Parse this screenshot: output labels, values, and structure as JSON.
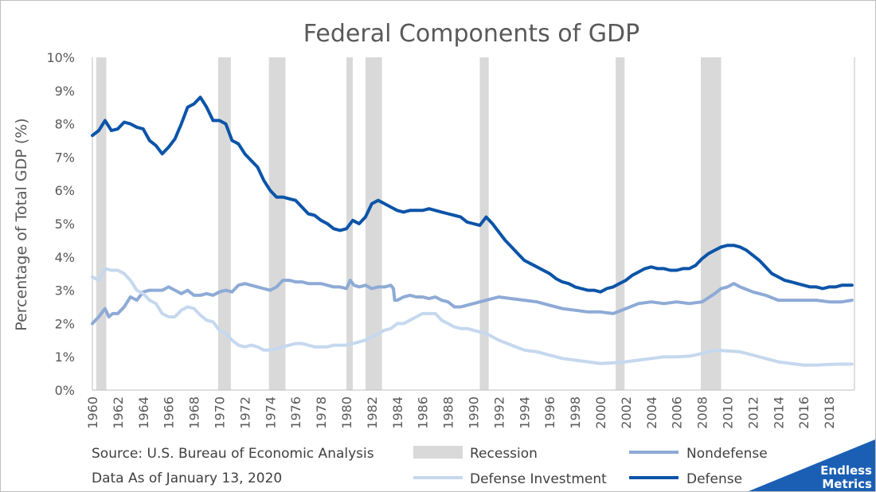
{
  "chart_data": {
    "type": "line",
    "title": "Federal Components of GDP",
    "ylabel": "Percentage of Total GDP (%)",
    "xlabel": "",
    "xlim": [
      1960,
      2020
    ],
    "ylim": [
      0,
      10
    ],
    "y_ticks": [
      "0%",
      "1%",
      "2%",
      "3%",
      "4%",
      "5%",
      "6%",
      "7%",
      "8%",
      "9%",
      "10%"
    ],
    "x_ticks": [
      "1960",
      "1962",
      "1964",
      "1966",
      "1968",
      "1970",
      "1972",
      "1974",
      "1976",
      "1978",
      "1980",
      "1982",
      "1984",
      "1986",
      "1988",
      "1990",
      "1992",
      "1994",
      "1996",
      "1998",
      "2000",
      "2002",
      "2004",
      "2006",
      "2008",
      "2010",
      "2012",
      "2014",
      "2016",
      "2018"
    ],
    "grid": false,
    "legend_position": "bottom",
    "recessions": [
      [
        1960.3,
        1961.1
      ],
      [
        1969.9,
        1970.9
      ],
      [
        1973.9,
        1975.2
      ],
      [
        1980.0,
        1980.5
      ],
      [
        1981.5,
        1982.8
      ],
      [
        1990.5,
        1991.2
      ],
      [
        2001.2,
        2001.9
      ],
      [
        2007.9,
        2009.5
      ]
    ],
    "recession_label": "Recession",
    "recession_color": "#d9d9d9",
    "series": [
      {
        "name": "Nondefense",
        "color": "#8eaad6",
        "x": [
          1960,
          1960.5,
          1961,
          1961.3,
          1961.6,
          1962,
          1962.5,
          1963,
          1963.5,
          1964,
          1964.5,
          1965,
          1965.5,
          1966,
          1966.5,
          1967,
          1967.5,
          1968,
          1968.5,
          1969,
          1969.5,
          1970,
          1970.5,
          1971,
          1971.5,
          1972,
          1972.5,
          1973,
          1973.5,
          1974,
          1974.5,
          1975,
          1975.5,
          1976,
          1976.5,
          1977,
          1977.5,
          1978,
          1978.5,
          1979,
          1979.5,
          1980,
          1980.3,
          1980.6,
          1981,
          1981.5,
          1982,
          1982.5,
          1983,
          1983.5,
          1983.7,
          1983.8,
          1984,
          1984.5,
          1985,
          1985.5,
          1986,
          1986.5,
          1987,
          1987.5,
          1988,
          1988.5,
          1989,
          1989.5,
          1990,
          1990.5,
          1991,
          1991.5,
          1992,
          1993,
          1994,
          1995,
          1996,
          1997,
          1998,
          1999,
          2000,
          2001,
          2002,
          2003,
          2004,
          2005,
          2006,
          2007,
          2008,
          2009,
          2009.5,
          2010,
          2010.5,
          2011,
          2012,
          2013,
          2014,
          2015,
          2016,
          2017,
          2018,
          2019,
          2019.8
        ],
        "values": [
          2.0,
          2.2,
          2.45,
          2.2,
          2.3,
          2.3,
          2.5,
          2.8,
          2.7,
          2.95,
          3.0,
          3.0,
          3.0,
          3.1,
          3.0,
          2.9,
          3.0,
          2.85,
          2.85,
          2.9,
          2.85,
          2.95,
          3.0,
          2.95,
          3.15,
          3.2,
          3.15,
          3.1,
          3.05,
          3.0,
          3.1,
          3.3,
          3.3,
          3.25,
          3.25,
          3.2,
          3.2,
          3.2,
          3.15,
          3.1,
          3.1,
          3.05,
          3.3,
          3.15,
          3.1,
          3.15,
          3.05,
          3.1,
          3.1,
          3.15,
          3.05,
          2.7,
          2.7,
          2.8,
          2.85,
          2.8,
          2.8,
          2.75,
          2.8,
          2.7,
          2.65,
          2.5,
          2.5,
          2.55,
          2.6,
          2.65,
          2.7,
          2.75,
          2.8,
          2.75,
          2.7,
          2.65,
          2.55,
          2.45,
          2.4,
          2.35,
          2.35,
          2.3,
          2.45,
          2.6,
          2.65,
          2.6,
          2.65,
          2.6,
          2.65,
          2.9,
          3.05,
          3.1,
          3.2,
          3.1,
          2.95,
          2.85,
          2.7,
          2.7,
          2.7,
          2.7,
          2.65,
          2.65,
          2.7
        ]
      },
      {
        "name": "Defense Investment",
        "color": "#c5d8ee",
        "x": [
          1960,
          1960.5,
          1961,
          1961.5,
          1962,
          1962.5,
          1963,
          1963.5,
          1964,
          1964.5,
          1965,
          1965.5,
          1966,
          1966.5,
          1967,
          1967.5,
          1968,
          1968.5,
          1969,
          1969.5,
          1970,
          1970.5,
          1971,
          1971.5,
          1972,
          1972.5,
          1973,
          1973.5,
          1974,
          1974.5,
          1975,
          1975.5,
          1976,
          1976.5,
          1977,
          1977.5,
          1978,
          1978.5,
          1979,
          1979.5,
          1980,
          1980.5,
          1981,
          1981.5,
          1982,
          1982.5,
          1983,
          1983.5,
          1984,
          1984.5,
          1985,
          1985.5,
          1986,
          1986.5,
          1987,
          1987.5,
          1988,
          1988.5,
          1989,
          1989.5,
          1990,
          1990.5,
          1991,
          1991.5,
          1992,
          1993,
          1994,
          1995,
          1996,
          1997,
          1998,
          1999,
          2000,
          2001,
          2002,
          2003,
          2004,
          2005,
          2006,
          2007,
          2008,
          2009,
          2010,
          2011,
          2012,
          2013,
          2014,
          2015,
          2016,
          2017,
          2018,
          2019,
          2019.8
        ],
        "values": [
          3.4,
          3.3,
          3.65,
          3.6,
          3.6,
          3.5,
          3.3,
          3.0,
          2.9,
          2.7,
          2.6,
          2.3,
          2.2,
          2.2,
          2.4,
          2.5,
          2.45,
          2.25,
          2.1,
          2.05,
          1.8,
          1.7,
          1.5,
          1.35,
          1.3,
          1.35,
          1.3,
          1.2,
          1.2,
          1.25,
          1.3,
          1.35,
          1.4,
          1.4,
          1.35,
          1.3,
          1.3,
          1.3,
          1.35,
          1.35,
          1.35,
          1.4,
          1.45,
          1.5,
          1.6,
          1.7,
          1.8,
          1.85,
          2.0,
          2.0,
          2.1,
          2.2,
          2.3,
          2.3,
          2.3,
          2.1,
          2.0,
          1.9,
          1.85,
          1.85,
          1.8,
          1.75,
          1.7,
          1.6,
          1.5,
          1.35,
          1.2,
          1.15,
          1.05,
          0.95,
          0.9,
          0.85,
          0.8,
          0.82,
          0.85,
          0.9,
          0.95,
          1.0,
          1.0,
          1.02,
          1.1,
          1.2,
          1.18,
          1.15,
          1.05,
          0.95,
          0.85,
          0.8,
          0.75,
          0.75,
          0.77,
          0.78,
          0.78
        ]
      },
      {
        "name": "Defense",
        "color": "#0b54a8",
        "x": [
          1960,
          1960.5,
          1961,
          1961.5,
          1962,
          1962.5,
          1963,
          1963.5,
          1964,
          1964.5,
          1965,
          1965.5,
          1966,
          1966.5,
          1967,
          1967.5,
          1968,
          1968.5,
          1969,
          1969.5,
          1970,
          1970.5,
          1971,
          1971.5,
          1972,
          1972.5,
          1973,
          1973.5,
          1974,
          1974.5,
          1975,
          1975.5,
          1976,
          1976.5,
          1977,
          1977.5,
          1978,
          1978.5,
          1979,
          1979.5,
          1980,
          1980.5,
          1981,
          1981.5,
          1982,
          1982.5,
          1983,
          1983.5,
          1984,
          1984.5,
          1985,
          1985.5,
          1986,
          1986.5,
          1987,
          1987.5,
          1988,
          1988.5,
          1989,
          1989.5,
          1990,
          1990.5,
          1991,
          1991.5,
          1992,
          1992.5,
          1993,
          1993.5,
          1994,
          1994.5,
          1995,
          1995.5,
          1996,
          1996.5,
          1997,
          1997.5,
          1998,
          1998.5,
          1999,
          1999.5,
          2000,
          2000.5,
          2001,
          2001.5,
          2002,
          2002.5,
          2003,
          2003.5,
          2004,
          2004.5,
          2005,
          2005.5,
          2006,
          2006.5,
          2007,
          2007.5,
          2008,
          2008.5,
          2009,
          2009.5,
          2010,
          2010.5,
          2011,
          2011.5,
          2012,
          2012.5,
          2013,
          2013.5,
          2014,
          2014.5,
          2015,
          2015.5,
          2016,
          2016.5,
          2017,
          2017.5,
          2018,
          2018.5,
          2019,
          2019.8
        ],
        "values": [
          7.65,
          7.8,
          8.1,
          7.8,
          7.85,
          8.05,
          8.0,
          7.9,
          7.85,
          7.5,
          7.35,
          7.1,
          7.3,
          7.55,
          8.0,
          8.5,
          8.6,
          8.8,
          8.5,
          8.1,
          8.1,
          8.0,
          7.5,
          7.4,
          7.1,
          6.9,
          6.7,
          6.3,
          6.0,
          5.8,
          5.8,
          5.75,
          5.7,
          5.5,
          5.3,
          5.25,
          5.1,
          5.0,
          4.85,
          4.8,
          4.85,
          5.1,
          5.0,
          5.2,
          5.6,
          5.7,
          5.6,
          5.5,
          5.4,
          5.35,
          5.4,
          5.4,
          5.4,
          5.45,
          5.4,
          5.35,
          5.3,
          5.25,
          5.2,
          5.05,
          5.0,
          4.95,
          5.2,
          5.0,
          4.75,
          4.5,
          4.3,
          4.1,
          3.9,
          3.8,
          3.7,
          3.6,
          3.5,
          3.35,
          3.25,
          3.2,
          3.1,
          3.05,
          3.0,
          3.0,
          2.95,
          3.05,
          3.1,
          3.2,
          3.3,
          3.45,
          3.55,
          3.65,
          3.7,
          3.65,
          3.65,
          3.6,
          3.6,
          3.65,
          3.65,
          3.75,
          3.95,
          4.1,
          4.2,
          4.3,
          4.35,
          4.35,
          4.3,
          4.2,
          4.05,
          3.9,
          3.7,
          3.5,
          3.4,
          3.3,
          3.25,
          3.2,
          3.15,
          3.1,
          3.1,
          3.05,
          3.1,
          3.1,
          3.15,
          3.15
        ]
      }
    ]
  },
  "notes": {
    "source": "Source: U.S. Bureau of Economic Analysis",
    "date": "Data As of January 13, 2020"
  },
  "logo": {
    "line1": "Endless",
    "line2": "Metrics",
    "color": "#1a5fb4"
  }
}
